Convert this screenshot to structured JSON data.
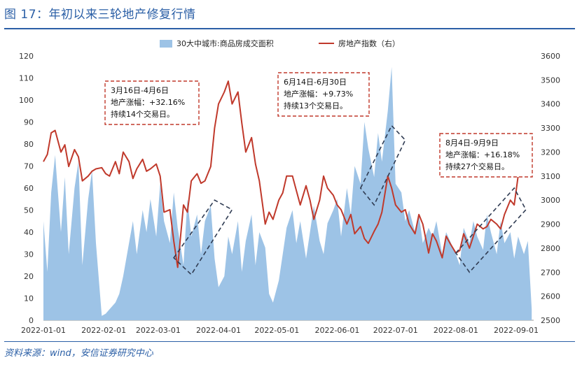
{
  "title": "图 17：年初以来三轮地产修复行情",
  "source": "资料来源：wind，安信证券研究中心",
  "colors": {
    "area": "#9dc3e6",
    "line": "#c0392b",
    "accent": "#2b5fa6",
    "annotation_box": "#c0392b",
    "trend_box": "#2f3b52"
  },
  "chart_data": {
    "type": "area",
    "x_labels": [
      "2022-01-01",
      "2022-02-01",
      "2022-03-01",
      "2022-04-01",
      "2022-05-01",
      "2022-06-01",
      "2022-07-01",
      "2022-08-01",
      "2022-09-01"
    ],
    "y_left_ticks": [
      0,
      10,
      20,
      30,
      40,
      50,
      60,
      70,
      80,
      90,
      100,
      110,
      120
    ],
    "y_left_range": [
      0,
      120
    ],
    "y_right_ticks": [
      2500,
      2600,
      2700,
      2800,
      2900,
      3000,
      3100,
      3200,
      3300,
      3400,
      3500,
      3600
    ],
    "y_right_range": [
      2500,
      3600
    ],
    "legend_placement": "top-center",
    "series": [
      {
        "name": "30大中城市:商品房成交面积",
        "axis": "left",
        "type": "area",
        "x": [
          "2022-01-01",
          "2022-01-03",
          "2022-01-05",
          "2022-01-07",
          "2022-01-10",
          "2022-01-12",
          "2022-01-14",
          "2022-01-17",
          "2022-01-19",
          "2022-01-21",
          "2022-01-24",
          "2022-01-26",
          "2022-01-28",
          "2022-01-31",
          "2022-02-02",
          "2022-02-04",
          "2022-02-07",
          "2022-02-09",
          "2022-02-11",
          "2022-02-14",
          "2022-02-16",
          "2022-02-18",
          "2022-02-21",
          "2022-02-23",
          "2022-02-25",
          "2022-02-28",
          "2022-03-02",
          "2022-03-04",
          "2022-03-07",
          "2022-03-09",
          "2022-03-11",
          "2022-03-14",
          "2022-03-16",
          "2022-03-18",
          "2022-03-21",
          "2022-03-23",
          "2022-03-25",
          "2022-03-28",
          "2022-03-30",
          "2022-04-01",
          "2022-04-04",
          "2022-04-06",
          "2022-04-08",
          "2022-04-11",
          "2022-04-13",
          "2022-04-15",
          "2022-04-18",
          "2022-04-20",
          "2022-04-22",
          "2022-04-25",
          "2022-04-27",
          "2022-04-29",
          "2022-05-02",
          "2022-05-04",
          "2022-05-06",
          "2022-05-09",
          "2022-05-11",
          "2022-05-13",
          "2022-05-16",
          "2022-05-18",
          "2022-05-20",
          "2022-05-23",
          "2022-05-25",
          "2022-05-27",
          "2022-05-30",
          "2022-06-01",
          "2022-06-03",
          "2022-06-06",
          "2022-06-08",
          "2022-06-10",
          "2022-06-13",
          "2022-06-15",
          "2022-06-17",
          "2022-06-20",
          "2022-06-22",
          "2022-06-24",
          "2022-06-27",
          "2022-06-29",
          "2022-07-01",
          "2022-07-04",
          "2022-07-06",
          "2022-07-08",
          "2022-07-11",
          "2022-07-13",
          "2022-07-15",
          "2022-07-18",
          "2022-07-20",
          "2022-07-22",
          "2022-07-25",
          "2022-07-27",
          "2022-07-29",
          "2022-08-01",
          "2022-08-03",
          "2022-08-05",
          "2022-08-08",
          "2022-08-10",
          "2022-08-12",
          "2022-08-15",
          "2022-08-17",
          "2022-08-19",
          "2022-08-22",
          "2022-08-24",
          "2022-08-26",
          "2022-08-29",
          "2022-08-31",
          "2022-09-02",
          "2022-09-05",
          "2022-09-07",
          "2022-09-09"
        ],
        "values": [
          45,
          22,
          58,
          75,
          40,
          65,
          30,
          60,
          72,
          25,
          55,
          68,
          35,
          2,
          3,
          5,
          8,
          12,
          20,
          35,
          45,
          30,
          50,
          40,
          55,
          38,
          62,
          45,
          35,
          58,
          42,
          25,
          55,
          38,
          48,
          30,
          45,
          52,
          28,
          15,
          20,
          38,
          30,
          45,
          22,
          36,
          48,
          25,
          40,
          33,
          12,
          8,
          18,
          30,
          42,
          50,
          35,
          45,
          28,
          40,
          52,
          36,
          30,
          44,
          50,
          55,
          38,
          60,
          48,
          70,
          62,
          90,
          78,
          65,
          85,
          72,
          95,
          115,
          62,
          58,
          45,
          50,
          40,
          48,
          35,
          42,
          38,
          45,
          30,
          40,
          36,
          30,
          25,
          42,
          35,
          45,
          38,
          32,
          48,
          40,
          30,
          45,
          35,
          40,
          28,
          38,
          30,
          36,
          5
        ]
      },
      {
        "name": "房地产指数（右）",
        "axis": "right",
        "type": "line",
        "x": [
          "2022-01-01",
          "2022-01-03",
          "2022-01-05",
          "2022-01-07",
          "2022-01-10",
          "2022-01-12",
          "2022-01-14",
          "2022-01-17",
          "2022-01-19",
          "2022-01-21",
          "2022-01-24",
          "2022-01-26",
          "2022-01-28",
          "2022-01-31",
          "2022-02-02",
          "2022-02-04",
          "2022-02-07",
          "2022-02-09",
          "2022-02-11",
          "2022-02-14",
          "2022-02-16",
          "2022-02-18",
          "2022-02-21",
          "2022-02-23",
          "2022-02-25",
          "2022-02-28",
          "2022-03-02",
          "2022-03-04",
          "2022-03-07",
          "2022-03-09",
          "2022-03-11",
          "2022-03-14",
          "2022-03-16",
          "2022-03-18",
          "2022-03-21",
          "2022-03-23",
          "2022-03-25",
          "2022-03-28",
          "2022-03-30",
          "2022-04-01",
          "2022-04-04",
          "2022-04-06",
          "2022-04-08",
          "2022-04-11",
          "2022-04-13",
          "2022-04-15",
          "2022-04-18",
          "2022-04-20",
          "2022-04-22",
          "2022-04-25",
          "2022-04-27",
          "2022-04-29",
          "2022-05-02",
          "2022-05-04",
          "2022-05-06",
          "2022-05-09",
          "2022-05-11",
          "2022-05-13",
          "2022-05-16",
          "2022-05-18",
          "2022-05-20",
          "2022-05-23",
          "2022-05-25",
          "2022-05-27",
          "2022-05-30",
          "2022-06-01",
          "2022-06-03",
          "2022-06-06",
          "2022-06-08",
          "2022-06-10",
          "2022-06-13",
          "2022-06-15",
          "2022-06-17",
          "2022-06-20",
          "2022-06-22",
          "2022-06-24",
          "2022-06-27",
          "2022-06-29",
          "2022-07-01",
          "2022-07-04",
          "2022-07-06",
          "2022-07-08",
          "2022-07-11",
          "2022-07-13",
          "2022-07-15",
          "2022-07-18",
          "2022-07-20",
          "2022-07-22",
          "2022-07-25",
          "2022-07-27",
          "2022-07-29",
          "2022-08-01",
          "2022-08-03",
          "2022-08-05",
          "2022-08-08",
          "2022-08-10",
          "2022-08-12",
          "2022-08-15",
          "2022-08-17",
          "2022-08-19",
          "2022-08-22",
          "2022-08-24",
          "2022-08-26",
          "2022-08-29",
          "2022-08-31",
          "2022-09-02",
          "2022-09-05",
          "2022-09-07",
          "2022-09-09"
        ],
        "values": [
          3160,
          3190,
          3280,
          3290,
          3200,
          3230,
          3140,
          3210,
          3180,
          3080,
          3100,
          3120,
          3130,
          3135,
          3110,
          3100,
          3160,
          3110,
          3200,
          3160,
          3090,
          3130,
          3170,
          3120,
          3130,
          3150,
          3100,
          2950,
          2960,
          2830,
          2720,
          2980,
          2950,
          3080,
          3110,
          3070,
          3080,
          3140,
          3300,
          3400,
          3450,
          3495,
          3400,
          3450,
          3320,
          3200,
          3260,
          3150,
          3080,
          2900,
          2950,
          2920,
          3000,
          3030,
          3100,
          3100,
          3040,
          2980,
          3060,
          3000,
          2920,
          3000,
          3100,
          3050,
          3020,
          2980,
          2960,
          2900,
          2940,
          2860,
          2890,
          2840,
          2820,
          2870,
          2900,
          2950,
          3100,
          3050,
          2980,
          2950,
          2960,
          2900,
          2860,
          2940,
          2900,
          2780,
          2860,
          2830,
          2760,
          2850,
          2820,
          2780,
          2790,
          2860,
          2800,
          2850,
          2900,
          2880,
          2890,
          2920,
          2900,
          2880,
          2940,
          3000,
          2980,
          3100,
          3100,
          3150,
          3150
        ]
      }
    ],
    "annotations": [
      {
        "lines": [
          "3月16日-4月6日",
          "地产涨幅：+32.16%",
          "持续14个交易日。"
        ]
      },
      {
        "lines": [
          "6月14日-6月30日",
          "地产涨幅：+9.73%",
          "持续13个交易日。"
        ]
      },
      {
        "lines": [
          "8月4日-9月9日",
          "地产涨幅：+16.18%",
          "持续27个交易日。"
        ]
      }
    ]
  }
}
